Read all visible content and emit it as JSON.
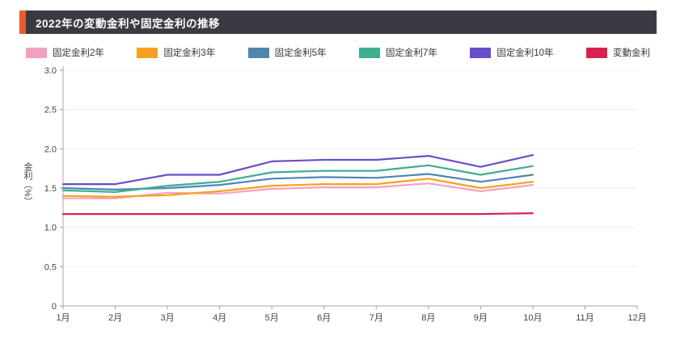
{
  "header": {
    "title": "2022年の変動金利や固定金利の推移"
  },
  "colors": {
    "header_bg": "#3a3a43",
    "header_accent": "#e85c2c",
    "axis": "#aaaaaa",
    "gridline": "#efefef",
    "tick_text": "#444444"
  },
  "chart_data": {
    "type": "line",
    "title": "2022年の変動金利や固定金利の推移",
    "xlabel": "",
    "ylabel": "金利（%）",
    "ylim": [
      0,
      3.0
    ],
    "ytick_values": [
      0,
      0.5,
      1.0,
      1.5,
      2.0,
      2.5,
      3.0
    ],
    "ytick_labels": [
      "0",
      "0.5",
      "1.0",
      "1.5",
      "2.0",
      "2.5",
      "3.0"
    ],
    "categories": [
      "1月",
      "2月",
      "3月",
      "4月",
      "5月",
      "6月",
      "7月",
      "8月",
      "9月",
      "10月",
      "11月",
      "12月"
    ],
    "grid": true,
    "legend_position": "top",
    "series": [
      {
        "id": "fixed-2yr",
        "name": "固定金利2年",
        "color": "#f2a1c2",
        "values": [
          1.37,
          1.37,
          1.44,
          1.43,
          1.49,
          1.51,
          1.51,
          1.56,
          1.46,
          1.54
        ]
      },
      {
        "id": "fixed-3yr",
        "name": "固定金利3年",
        "color": "#f6a120",
        "values": [
          1.4,
          1.39,
          1.41,
          1.46,
          1.53,
          1.55,
          1.55,
          1.62,
          1.5,
          1.58
        ]
      },
      {
        "id": "fixed-5yr",
        "name": "固定金利5年",
        "color": "#4e86b0",
        "values": [
          1.5,
          1.48,
          1.5,
          1.54,
          1.62,
          1.64,
          1.63,
          1.68,
          1.58,
          1.67
        ]
      },
      {
        "id": "fixed-7yr",
        "name": "固定金利7年",
        "color": "#3fae8f",
        "values": [
          1.47,
          1.45,
          1.53,
          1.58,
          1.7,
          1.72,
          1.72,
          1.79,
          1.67,
          1.78
        ]
      },
      {
        "id": "fixed-10yr",
        "name": "固定金利10年",
        "color": "#6a4ec9",
        "values": [
          1.55,
          1.55,
          1.67,
          1.67,
          1.84,
          1.86,
          1.86,
          1.91,
          1.77,
          1.92
        ]
      },
      {
        "id": "variable",
        "name": "変動金利",
        "color": "#d6244e",
        "values": [
          1.17,
          1.17,
          1.17,
          1.17,
          1.17,
          1.17,
          1.17,
          1.17,
          1.17,
          1.18
        ]
      }
    ]
  }
}
